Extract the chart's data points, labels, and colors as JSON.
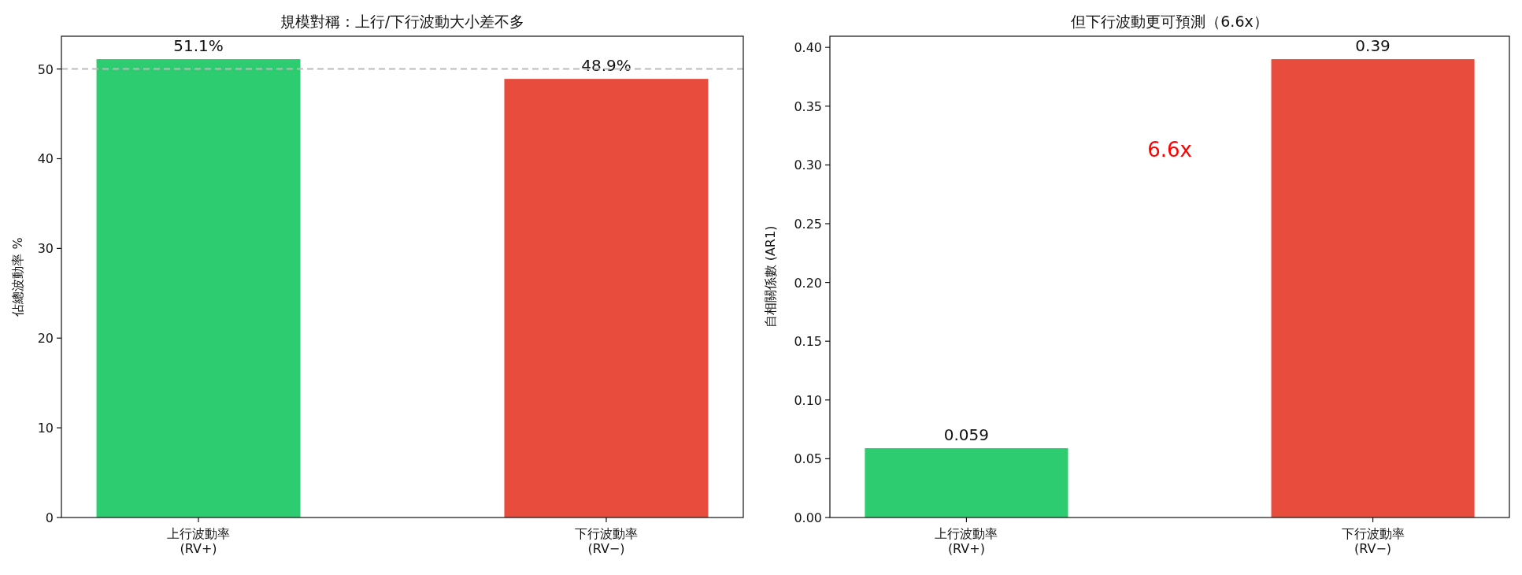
{
  "chart_data": [
    {
      "type": "bar",
      "title": "規模對稱：上行/下行波動大小差不多",
      "ylabel": "佔總波動率 %",
      "categories": [
        "上行波動率\n(RV+)",
        "下行波動率\n(RV−)"
      ],
      "values": [
        51.1,
        48.9
      ],
      "colors": [
        "#2ecc71",
        "#e74c3c"
      ],
      "value_labels": [
        "51.1%",
        "48.9%"
      ],
      "ylim": [
        0,
        53.655
      ],
      "yticks": [
        0,
        10,
        20,
        30,
        40,
        50
      ],
      "ref_lines": [
        {
          "axis": "y",
          "value": 50,
          "color": "#bbbbbb",
          "line_style": "dashed"
        }
      ]
    },
    {
      "type": "bar",
      "title": "但下行波動更可預測（6.6x）",
      "ylabel": "自相關係數 (AR1)",
      "categories": [
        "上行波動率\n(RV+)",
        "下行波動率\n(RV−)"
      ],
      "values": [
        0.059,
        0.39
      ],
      "colors": [
        "#2ecc71",
        "#e74c3c"
      ],
      "data_labels": true,
      "ylim": [
        0,
        0.4095
      ],
      "yticks": [
        {
          "value": 0,
          "label": "0.00"
        },
        0.05,
        {
          "value": 0.1,
          "label": "0.10"
        },
        0.15,
        {
          "value": 0.2,
          "label": "0.20"
        },
        0.25,
        {
          "value": 0.3,
          "label": "0.30"
        },
        0.35,
        {
          "value": 0.4,
          "label": "0.40"
        }
      ],
      "annotations": [
        "6.6x"
      ]
    }
  ]
}
